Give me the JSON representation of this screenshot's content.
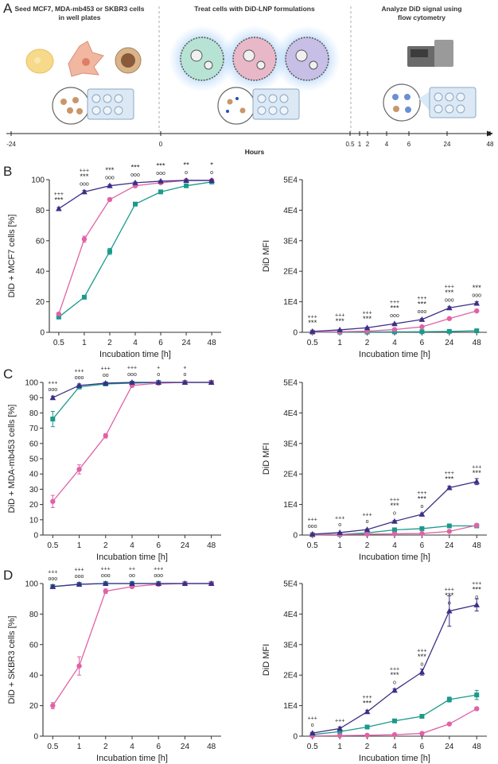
{
  "schematic": {
    "panel_letter": "A",
    "steps": [
      {
        "line1": "Seed MCF7, MDA-mb453 or SKBR3 cells",
        "line2": "in well plates"
      },
      {
        "line1": "Treat cells with DiD-LNP formulations",
        "line2": ""
      },
      {
        "line1": "Analyze DiD signal using",
        "line2": "flow cytometry"
      }
    ],
    "timeline": {
      "ticks": [
        "-24",
        "0",
        "0.5",
        "1",
        "2",
        "4",
        "6",
        "24",
        "48"
      ],
      "title": "Hours"
    }
  },
  "colors": {
    "navy": "#3b2f86",
    "pink": "#e062a6",
    "teal": "#1a9a8c",
    "axis": "#333333"
  },
  "chart_data": [
    {
      "id": "B-left",
      "panel_letter": "B",
      "type": "line",
      "categories": [
        "0.5",
        "1",
        "2",
        "4",
        "6",
        "24",
        "48"
      ],
      "ylabel": "DiD + MCF7 cells  [%]",
      "xlabel": "Incubation time [h]",
      "yticks": [
        "0",
        "20",
        "40",
        "60",
        "80",
        "100"
      ],
      "ylim": [
        0,
        100
      ],
      "series": [
        {
          "color": "navy",
          "marker": "triangle",
          "values": [
            81,
            92,
            96,
            98,
            99,
            99.5,
            99.5
          ],
          "errors": [
            0.8,
            1,
            0.8,
            0.5,
            0.5,
            0.5,
            0.5
          ]
        },
        {
          "color": "pink",
          "marker": "circle",
          "values": [
            12,
            61,
            87,
            96,
            98,
            99.5,
            99.5
          ],
          "errors": [
            1,
            2,
            1,
            1,
            0.5,
            0.5,
            0.5
          ]
        },
        {
          "color": "teal",
          "marker": "square",
          "values": [
            10,
            23,
            53,
            84,
            92,
            96,
            98.5
          ],
          "errors": [
            1,
            1,
            2,
            1,
            0.5,
            0.5,
            0.5
          ]
        }
      ],
      "annotations": [
        {
          "x": "0.5",
          "y": 81,
          "lines": [
            "+++",
            "***"
          ]
        },
        {
          "x": "1",
          "y": 92,
          "lines": [
            "+++",
            "***",
            "ooo"
          ]
        },
        {
          "x": "2",
          "y": 96,
          "lines": [
            "***",
            "ooo"
          ]
        },
        {
          "x": "4",
          "y": 98,
          "lines": [
            "***",
            "ooo"
          ]
        },
        {
          "x": "6",
          "y": 99,
          "lines": [
            "***",
            "ooo"
          ]
        },
        {
          "x": "24",
          "y": 99.5,
          "lines": [
            "**",
            "o"
          ]
        },
        {
          "x": "48",
          "y": 99.5,
          "lines": [
            "*",
            "o"
          ]
        }
      ]
    },
    {
      "id": "B-right",
      "panel_letter": "",
      "type": "line",
      "categories": [
        "0.5",
        "1",
        "2",
        "4",
        "6",
        "24",
        "48"
      ],
      "ylabel": "DiD MFI",
      "xlabel": "Incubation time [h]",
      "yticks": [
        "0",
        "1E4",
        "2E4",
        "3E4",
        "4E4",
        "5E4"
      ],
      "ylim": [
        0,
        50000
      ],
      "series": [
        {
          "color": "navy",
          "marker": "triangle",
          "values": [
            300,
            800,
            1500,
            2800,
            4200,
            8000,
            9500
          ],
          "errors": [
            100,
            100,
            150,
            200,
            300,
            400,
            500
          ]
        },
        {
          "color": "pink",
          "marker": "circle",
          "values": [
            100,
            200,
            400,
            900,
            1800,
            4500,
            7000
          ],
          "errors": [
            50,
            50,
            80,
            100,
            200,
            300,
            400
          ]
        },
        {
          "color": "teal",
          "marker": "square",
          "values": [
            50,
            80,
            100,
            150,
            200,
            300,
            500
          ],
          "errors": [
            20,
            20,
            30,
            30,
            40,
            50,
            80
          ]
        }
      ],
      "annotations": [
        {
          "x": "0.5",
          "y": 300,
          "lines": [
            "+++",
            "***"
          ]
        },
        {
          "x": "1",
          "y": 800,
          "lines": [
            "+++",
            "***"
          ]
        },
        {
          "x": "2",
          "y": 1500,
          "lines": [
            "+++",
            "***"
          ]
        },
        {
          "x": "4",
          "y": 2800,
          "lines": [
            "+++",
            "***",
            "ooo"
          ]
        },
        {
          "x": "6",
          "y": 4200,
          "lines": [
            "+++",
            "***",
            "ooo"
          ]
        },
        {
          "x": "24",
          "y": 8000,
          "lines": [
            "+++",
            "***",
            "ooo"
          ]
        },
        {
          "x": "48",
          "y": 9500,
          "lines": [
            "***",
            "ooo"
          ]
        }
      ]
    },
    {
      "id": "C-left",
      "panel_letter": "C",
      "type": "line",
      "categories": [
        "0.5",
        "1",
        "2",
        "4",
        "6",
        "24",
        "48"
      ],
      "ylabel": "DiD + MDA-mb453 cells [%]",
      "xlabel": "Incubation time [h]",
      "yticks": [
        "0",
        "10",
        "20",
        "30",
        "40",
        "50",
        "60",
        "70",
        "80",
        "90",
        "100"
      ],
      "ylim": [
        0,
        100
      ],
      "series": [
        {
          "color": "navy",
          "marker": "triangle",
          "values": [
            90,
            98,
            99.5,
            100,
            100,
            100,
            100
          ],
          "errors": [
            1,
            1,
            0.5,
            0.3,
            0.3,
            0.3,
            0.3
          ]
        },
        {
          "color": "pink",
          "marker": "circle",
          "values": [
            22,
            43,
            65,
            98,
            99.5,
            100,
            100
          ],
          "errors": [
            4,
            3,
            1.5,
            1,
            0.5,
            0.3,
            0.3
          ]
        },
        {
          "color": "teal",
          "marker": "square",
          "values": [
            76,
            97,
            99,
            99.5,
            100,
            100,
            100
          ],
          "errors": [
            5,
            1,
            0.5,
            0.3,
            0.3,
            0.3,
            0.3
          ]
        }
      ],
      "annotations": [
        {
          "x": "0.5",
          "y": 90,
          "lines": [
            "+++",
            "ooo"
          ]
        },
        {
          "x": "1",
          "y": 98,
          "lines": [
            "+++",
            "ooo"
          ]
        },
        {
          "x": "2",
          "y": 99.5,
          "lines": [
            "+++",
            "oo"
          ]
        },
        {
          "x": "4",
          "y": 100,
          "lines": [
            "+++",
            "ooo"
          ]
        },
        {
          "x": "6",
          "y": 100,
          "lines": [
            "+",
            "o"
          ]
        },
        {
          "x": "24",
          "y": 100,
          "lines": [
            "+",
            "o"
          ]
        }
      ]
    },
    {
      "id": "C-right",
      "panel_letter": "",
      "type": "line",
      "categories": [
        "0.5",
        "1",
        "2",
        "4",
        "6",
        "24",
        "48"
      ],
      "ylabel": "DiD MFI",
      "xlabel": "Incubation time [h]",
      "yticks": [
        "0",
        "1E4",
        "2E4",
        "3E4",
        "4E4",
        "5E4"
      ],
      "ylim": [
        0,
        50000
      ],
      "series": [
        {
          "color": "navy",
          "marker": "triangle",
          "values": [
            300,
            800,
            1800,
            4500,
            6800,
            15500,
            17500
          ],
          "errors": [
            100,
            100,
            200,
            300,
            400,
            500,
            1000
          ]
        },
        {
          "color": "pink",
          "marker": "circle",
          "values": [
            100,
            200,
            300,
            400,
            500,
            1200,
            3200
          ],
          "errors": [
            50,
            50,
            50,
            80,
            100,
            150,
            300
          ]
        },
        {
          "color": "teal",
          "marker": "square",
          "values": [
            100,
            200,
            700,
            1700,
            2100,
            3000,
            3000
          ],
          "errors": [
            50,
            50,
            100,
            150,
            150,
            200,
            200
          ]
        }
      ],
      "annotations": [
        {
          "x": "0.5",
          "y": 300,
          "lines": [
            "+++",
            "ooo"
          ]
        },
        {
          "x": "1",
          "y": 800,
          "lines": [
            "+++",
            "o"
          ]
        },
        {
          "x": "2",
          "y": 1800,
          "lines": [
            "+++",
            "o"
          ]
        },
        {
          "x": "4",
          "y": 4500,
          "lines": [
            "+++",
            "***",
            "o"
          ]
        },
        {
          "x": "6",
          "y": 6800,
          "lines": [
            "+++",
            "***",
            "o"
          ]
        },
        {
          "x": "24",
          "y": 15500,
          "lines": [
            "+++",
            "***"
          ]
        },
        {
          "x": "48",
          "y": 17500,
          "lines": [
            "+++",
            "***"
          ]
        }
      ]
    },
    {
      "id": "D-left",
      "panel_letter": "D",
      "type": "line",
      "categories": [
        "0.5",
        "1",
        "2",
        "4",
        "6",
        "24",
        "48"
      ],
      "ylabel": "DiD + SKBR3 cells [%]",
      "xlabel": "Incubation time [h]",
      "yticks": [
        "0",
        "20",
        "40",
        "60",
        "80",
        "100"
      ],
      "ylim": [
        0,
        100
      ],
      "series": [
        {
          "color": "navy",
          "marker": "triangle",
          "values": [
            98,
            99.5,
            100,
            100,
            100,
            100,
            100
          ],
          "errors": [
            1,
            0.5,
            0.3,
            0.3,
            0.3,
            0.3,
            0.3
          ]
        },
        {
          "color": "pink",
          "marker": "circle",
          "values": [
            20,
            46,
            95,
            98,
            99.5,
            100,
            100
          ],
          "errors": [
            2,
            6,
            1.5,
            1,
            0.5,
            0.3,
            0.3
          ]
        },
        {
          "color": "teal",
          "marker": "square",
          "values": [
            98,
            99.5,
            100,
            100,
            100,
            100,
            100
          ],
          "errors": [
            1,
            0.5,
            0.3,
            0.3,
            0.3,
            0.3,
            0.3
          ]
        }
      ],
      "annotations": [
        {
          "x": "0.5",
          "y": 98,
          "lines": [
            "+++",
            "ooo"
          ]
        },
        {
          "x": "1",
          "y": 99.5,
          "lines": [
            "+++",
            "ooo"
          ]
        },
        {
          "x": "2",
          "y": 100,
          "lines": [
            "+++",
            "ooo"
          ]
        },
        {
          "x": "4",
          "y": 100,
          "lines": [
            "++",
            "oo"
          ]
        },
        {
          "x": "6",
          "y": 100,
          "lines": [
            "+++",
            "ooo"
          ]
        }
      ]
    },
    {
      "id": "D-right",
      "panel_letter": "",
      "type": "line",
      "categories": [
        "0.5",
        "1",
        "2",
        "4",
        "6",
        "24",
        "48"
      ],
      "ylabel": "DiD MFI",
      "xlabel": "Incubation time [h]",
      "yticks": [
        "0",
        "1E4",
        "2E4",
        "3E4",
        "4E4",
        "5E4"
      ],
      "ylim": [
        0,
        50000
      ],
      "series": [
        {
          "color": "navy",
          "marker": "triangle",
          "values": [
            1000,
            2500,
            8000,
            15000,
            21000,
            41000,
            43000
          ],
          "errors": [
            300,
            500,
            500,
            500,
            1000,
            5000,
            2000
          ]
        },
        {
          "color": "pink",
          "marker": "circle",
          "values": [
            100,
            200,
            300,
            500,
            900,
            4000,
            9000
          ],
          "errors": [
            50,
            50,
            50,
            100,
            150,
            300,
            500
          ]
        },
        {
          "color": "teal",
          "marker": "square",
          "values": [
            500,
            1500,
            3000,
            5000,
            6500,
            12000,
            13500
          ],
          "errors": [
            100,
            200,
            200,
            300,
            400,
            800,
            1500
          ]
        }
      ],
      "annotations": [
        {
          "x": "0.5",
          "y": 1000,
          "lines": [
            "+++",
            "o"
          ]
        },
        {
          "x": "1",
          "y": 2500,
          "lines": [
            "+++"
          ]
        },
        {
          "x": "2",
          "y": 8000,
          "lines": [
            "+++",
            "***"
          ]
        },
        {
          "x": "4",
          "y": 15000,
          "lines": [
            "+++",
            "***",
            "o"
          ]
        },
        {
          "x": "6",
          "y": 21000,
          "lines": [
            "+++",
            "***",
            "o"
          ]
        },
        {
          "x": "24",
          "y": 41000,
          "lines": [
            "+++",
            "***",
            "o"
          ]
        },
        {
          "x": "48",
          "y": 43000,
          "lines": [
            "+++",
            "***",
            "o"
          ]
        }
      ]
    }
  ]
}
